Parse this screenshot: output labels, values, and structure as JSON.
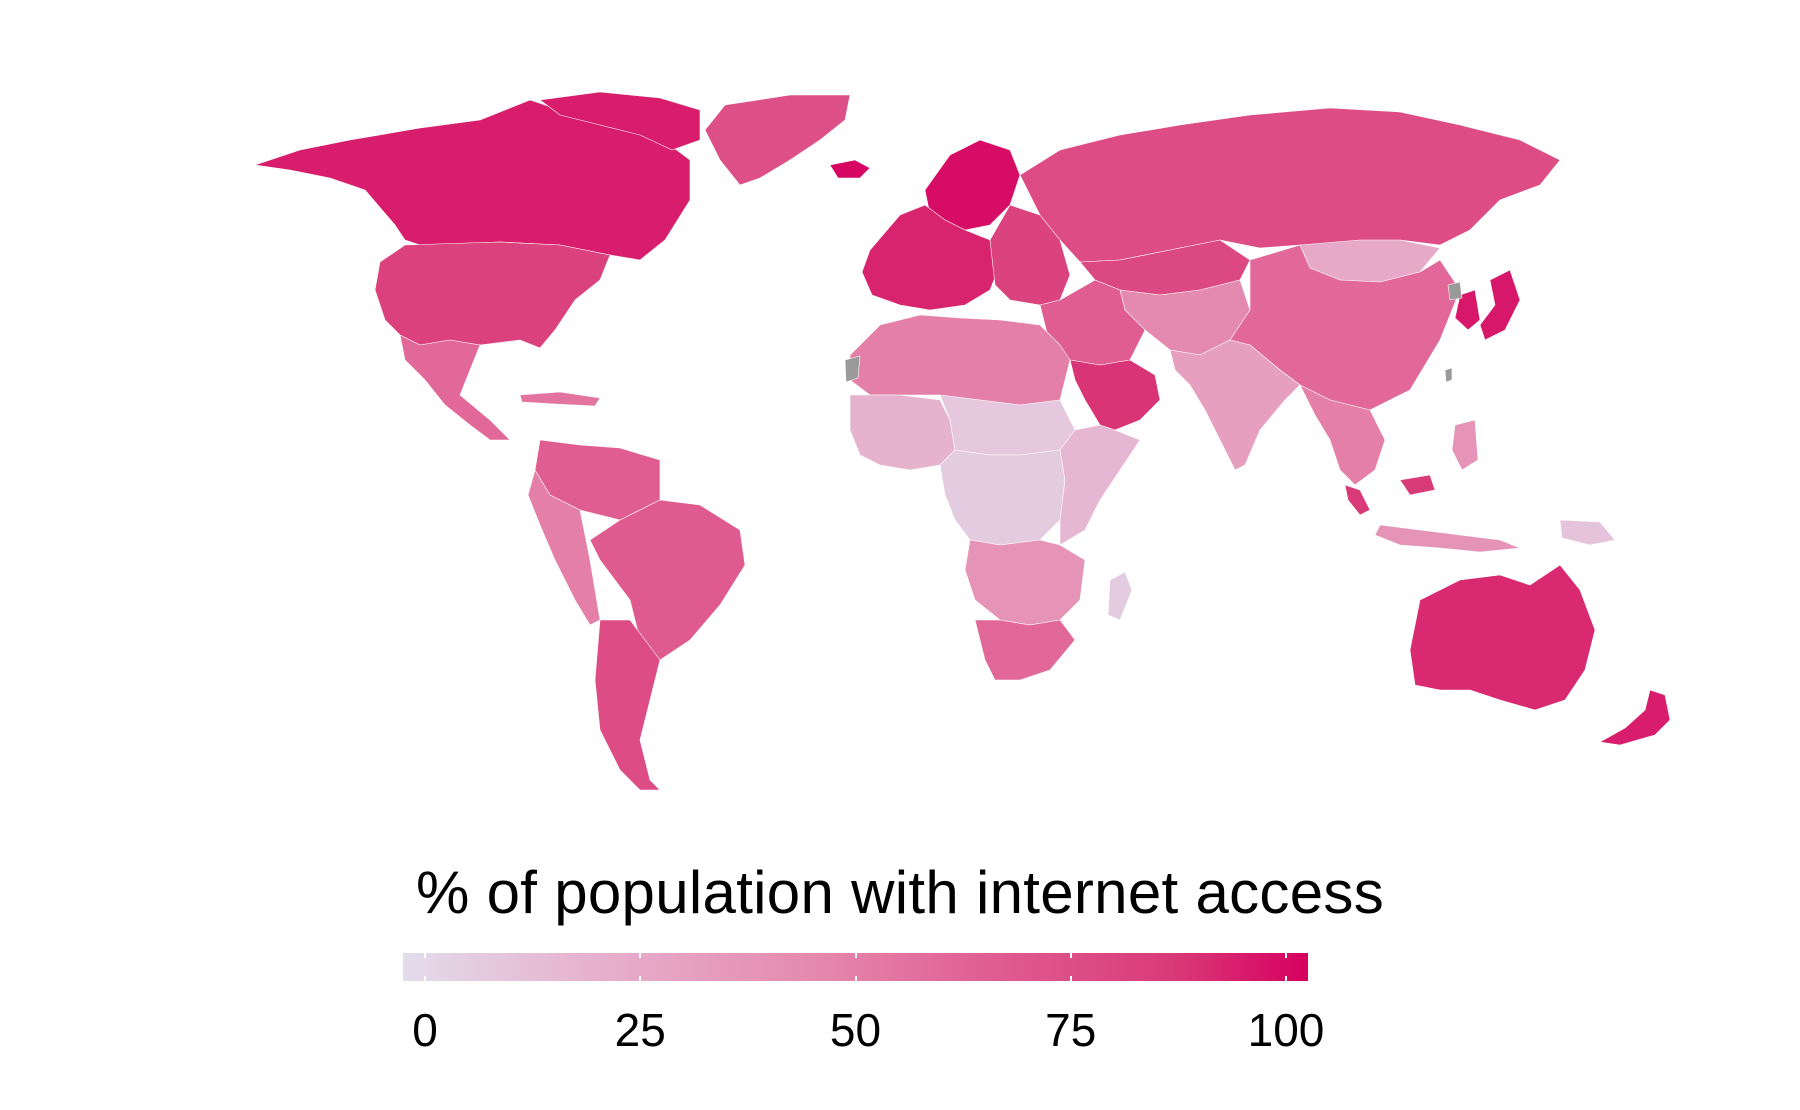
{
  "legend": {
    "title": "% of population with internet access",
    "min": 0,
    "max": 100,
    "ticks": [
      {
        "value": 0,
        "label": "0"
      },
      {
        "value": 25,
        "label": "25"
      },
      {
        "value": 50,
        "label": "50"
      },
      {
        "value": 75,
        "label": "75"
      },
      {
        "value": 100,
        "label": "100"
      }
    ],
    "color_low": "#e3dcec",
    "color_high": "#d6005f",
    "color_scale": [
      "#e3dcec",
      "#e6b3cf",
      "#e58aaf",
      "#e05d91",
      "#d93a78",
      "#d6005f"
    ],
    "no_data_color": "#9a9a9a"
  },
  "map": {
    "projection": "Robinson",
    "regions": [
      {
        "name": "North America (north)",
        "value": 90
      },
      {
        "name": "North America (south)",
        "value": 76
      },
      {
        "name": "Greenland",
        "value": 68
      },
      {
        "name": "Arctic islands",
        "value": 90
      },
      {
        "name": "Central America",
        "value": 55
      },
      {
        "name": "Caribbean",
        "value": 50
      },
      {
        "name": "South America (north)",
        "value": 60
      },
      {
        "name": "South America (Andes)",
        "value": 45
      },
      {
        "name": "South America (east)",
        "value": 62
      },
      {
        "name": "South America (south)",
        "value": 70
      },
      {
        "name": "Northern Europe",
        "value": 96
      },
      {
        "name": "Western Europe",
        "value": 88
      },
      {
        "name": "Eastern Europe",
        "value": 75
      },
      {
        "name": "Iceland",
        "value": 98
      },
      {
        "name": "Russia",
        "value": 70
      },
      {
        "name": "Kazakhstan",
        "value": 72
      },
      {
        "name": "Central Asia",
        "value": 40
      },
      {
        "name": "Mongolia",
        "value": 25
      },
      {
        "name": "China",
        "value": 55
      },
      {
        "name": "Korea and Japan",
        "value": 92
      },
      {
        "name": "Middle East",
        "value": 60
      },
      {
        "name": "Arabian Peninsula",
        "value": 82
      },
      {
        "name": "South Asia",
        "value": 30
      },
      {
        "name": "Southeast Asia (mainland)",
        "value": 45
      },
      {
        "name": "Southeast Asia (islands)",
        "value": 35
      },
      {
        "name": "Malaysia",
        "value": 80
      },
      {
        "name": "North Africa",
        "value": 45
      },
      {
        "name": "West Africa",
        "value": 20
      },
      {
        "name": "Sahel",
        "value": 10
      },
      {
        "name": "Central Africa",
        "value": 8
      },
      {
        "name": "East Africa",
        "value": 18
      },
      {
        "name": "Southern Africa",
        "value": 35
      },
      {
        "name": "South Africa",
        "value": 55
      },
      {
        "name": "Madagascar",
        "value": 8
      },
      {
        "name": "Australia",
        "value": 86
      },
      {
        "name": "New Zealand",
        "value": 90
      },
      {
        "name": "Papua New Guinea",
        "value": 12
      }
    ]
  }
}
